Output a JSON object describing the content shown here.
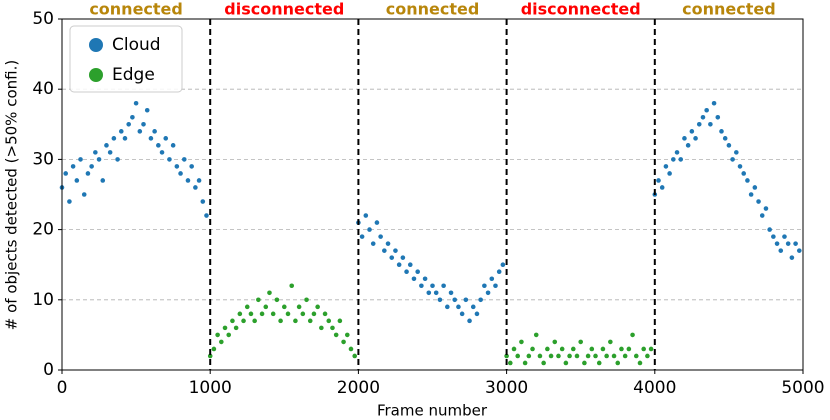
{
  "chart_data": {
    "type": "scatter",
    "xlabel": "Frame number",
    "ylabel": "# of objects detected (>50% confi.)",
    "xlim": [
      0,
      5000
    ],
    "ylim": [
      0,
      50
    ],
    "xticks": [
      0,
      1000,
      2000,
      3000,
      4000,
      5000
    ],
    "yticks": [
      0,
      10,
      20,
      30,
      40,
      50
    ],
    "grid": true,
    "legend": "upper left",
    "vlines": [
      1000,
      2000,
      3000,
      4000
    ],
    "annotations": [
      {
        "text": "connected",
        "color": "#b8860b"
      },
      {
        "text": "disconnected",
        "color": "#ff0000"
      },
      {
        "text": "connected",
        "color": "#b8860b"
      },
      {
        "text": "disconnected",
        "color": "#ff0000"
      },
      {
        "text": "connected",
        "color": "#b8860b"
      }
    ],
    "series": [
      {
        "name": "Cloud",
        "color": "#1f77b4",
        "x": [
          0,
          25,
          50,
          75,
          100,
          125,
          150,
          175,
          200,
          225,
          250,
          275,
          300,
          325,
          350,
          375,
          400,
          425,
          450,
          475,
          500,
          525,
          550,
          575,
          600,
          625,
          650,
          675,
          700,
          725,
          750,
          775,
          800,
          825,
          850,
          875,
          900,
          925,
          950,
          975,
          2000,
          2025,
          2050,
          2075,
          2100,
          2125,
          2150,
          2175,
          2200,
          2225,
          2250,
          2275,
          2300,
          2325,
          2350,
          2375,
          2400,
          2425,
          2450,
          2475,
          2500,
          2525,
          2550,
          2575,
          2600,
          2625,
          2650,
          2675,
          2700,
          2725,
          2750,
          2775,
          2800,
          2825,
          2850,
          2875,
          2900,
          2925,
          2950,
          2975,
          4000,
          4025,
          4050,
          4075,
          4100,
          4125,
          4150,
          4175,
          4200,
          4225,
          4250,
          4275,
          4300,
          4325,
          4350,
          4375,
          4400,
          4425,
          4450,
          4475,
          4500,
          4525,
          4550,
          4575,
          4600,
          4625,
          4650,
          4675,
          4700,
          4725,
          4750,
          4775,
          4800,
          4825,
          4850,
          4875,
          4900,
          4925,
          4950,
          4975
        ],
        "values": [
          26,
          28,
          24,
          29,
          27,
          30,
          25,
          28,
          29,
          31,
          30,
          27,
          32,
          31,
          33,
          30,
          34,
          33,
          35,
          36,
          38,
          34,
          35,
          37,
          33,
          34,
          32,
          31,
          33,
          30,
          32,
          29,
          28,
          30,
          27,
          29,
          26,
          27,
          24,
          22,
          21,
          19,
          22,
          20,
          18,
          21,
          19,
          17,
          18,
          16,
          17,
          15,
          16,
          14,
          15,
          13,
          14,
          12,
          13,
          11,
          12,
          11,
          10,
          12,
          9,
          11,
          10,
          9,
          8,
          10,
          7,
          9,
          8,
          10,
          12,
          11,
          13,
          12,
          14,
          15,
          25,
          27,
          26,
          29,
          28,
          30,
          31,
          30,
          33,
          32,
          34,
          33,
          35,
          36,
          37,
          35,
          38,
          36,
          34,
          33,
          32,
          30,
          31,
          29,
          28,
          27,
          25,
          26,
          24,
          22,
          23,
          20,
          19,
          18,
          17,
          19,
          18,
          16,
          18,
          17
        ]
      },
      {
        "name": "Edge",
        "color": "#2ca02c",
        "x": [
          1000,
          1025,
          1050,
          1075,
          1100,
          1125,
          1150,
          1175,
          1200,
          1225,
          1250,
          1275,
          1300,
          1325,
          1350,
          1375,
          1400,
          1425,
          1450,
          1475,
          1500,
          1525,
          1550,
          1575,
          1600,
          1625,
          1650,
          1675,
          1700,
          1725,
          1750,
          1775,
          1800,
          1825,
          1850,
          1875,
          1900,
          1925,
          1950,
          1975,
          3000,
          3025,
          3050,
          3075,
          3100,
          3125,
          3150,
          3175,
          3200,
          3225,
          3250,
          3275,
          3300,
          3325,
          3350,
          3375,
          3400,
          3425,
          3450,
          3475,
          3500,
          3525,
          3550,
          3575,
          3600,
          3625,
          3650,
          3675,
          3700,
          3725,
          3750,
          3775,
          3800,
          3825,
          3850,
          3875,
          3900,
          3925,
          3950,
          3975
        ],
        "values": [
          2,
          3,
          5,
          4,
          6,
          5,
          7,
          6,
          8,
          7,
          9,
          8,
          7,
          10,
          8,
          9,
          11,
          8,
          10,
          7,
          9,
          8,
          12,
          7,
          9,
          8,
          10,
          7,
          8,
          9,
          6,
          8,
          7,
          6,
          5,
          7,
          4,
          5,
          3,
          2,
          2,
          1,
          3,
          2,
          4,
          1,
          2,
          3,
          5,
          2,
          1,
          3,
          2,
          4,
          2,
          3,
          1,
          2,
          3,
          2,
          4,
          1,
          2,
          3,
          2,
          1,
          3,
          2,
          4,
          2,
          1,
          3,
          2,
          3,
          5,
          2,
          1,
          3,
          2,
          3
        ]
      }
    ]
  }
}
